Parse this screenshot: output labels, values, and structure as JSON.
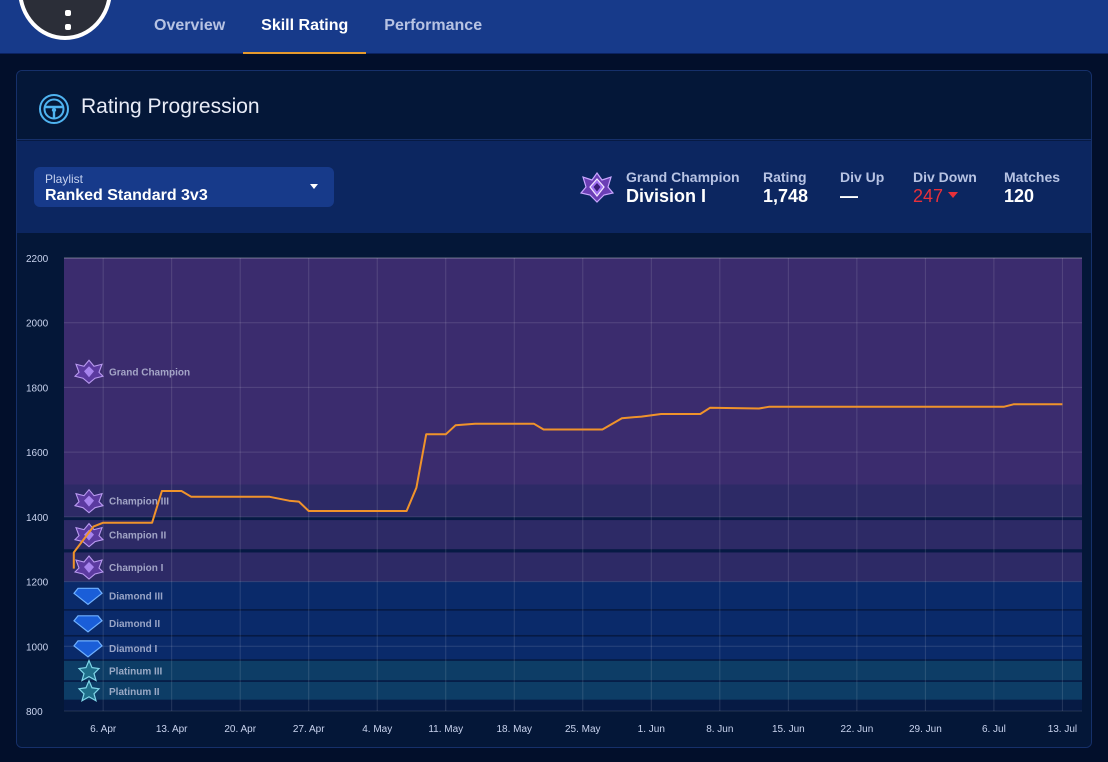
{
  "tabs": [
    {
      "label": "Overview"
    },
    {
      "label": "Skill Rating",
      "active": true
    },
    {
      "label": "Performance"
    }
  ],
  "card": {
    "title": "Rating Progression",
    "icon": "steering-wheel-icon"
  },
  "playlist": {
    "label": "Playlist",
    "value": "Ranked Standard 3v3"
  },
  "current_rank": {
    "tier": "Grand Champion",
    "division": "Division I",
    "icon": "grand-champion-rank-icon"
  },
  "stats": {
    "rating_label": "Rating",
    "rating_value": "1,748",
    "div_up_label": "Div Up",
    "div_up_value": "—",
    "div_down_label": "Div Down",
    "div_down_value": "247",
    "matches_label": "Matches",
    "matches_value": "120"
  },
  "colors": {
    "line": "#f0932b",
    "accent": "#e59a2e",
    "div_down": "#e8303a",
    "champion_band": "#3b2c6e",
    "diamond_band": "#0a2a6a",
    "platinum_band": "#0d3d66"
  },
  "chart_data": {
    "type": "line",
    "ylim": [
      800,
      2200
    ],
    "yticks": [
      800,
      1000,
      1200,
      1400,
      1600,
      1800,
      2000,
      2200
    ],
    "xticks": [
      "6. Apr",
      "13. Apr",
      "20. Apr",
      "27. Apr",
      "4. May",
      "11. May",
      "18. May",
      "25. May",
      "1. Jun",
      "8. Jun",
      "15. Jun",
      "22. Jun",
      "29. Jun",
      "6. Jul",
      "13. Jul"
    ],
    "xlim": [
      "2020-04-02",
      "2020-07-15"
    ],
    "grid": true,
    "bands": [
      {
        "name": "Grand Champion",
        "from": 1500,
        "to": 2200
      },
      {
        "name": "Champion III",
        "from": 1400,
        "to": 1500
      },
      {
        "name": "Champion II",
        "from": 1300,
        "to": 1390
      },
      {
        "name": "Champion I",
        "from": 1200,
        "to": 1290
      },
      {
        "name": "Diamond III",
        "from": 1115,
        "to": 1200
      },
      {
        "name": "Diamond II",
        "from": 1035,
        "to": 1110
      },
      {
        "name": "Diamond I",
        "from": 960,
        "to": 1030
      },
      {
        "name": "Platinum III",
        "from": 895,
        "to": 955
      },
      {
        "name": "Platinum II",
        "from": 835,
        "to": 890
      }
    ],
    "series": [
      {
        "points": [
          [
            "2020-04-03",
            1240
          ],
          [
            "2020-04-03",
            1290
          ],
          [
            "2020-04-04",
            1330
          ],
          [
            "2020-04-05",
            1370
          ],
          [
            "2020-04-06",
            1382
          ],
          [
            "2020-04-09",
            1382
          ],
          [
            "2020-04-11",
            1382
          ],
          [
            "2020-04-12",
            1480
          ],
          [
            "2020-04-14",
            1480
          ],
          [
            "2020-04-15",
            1462
          ],
          [
            "2020-04-20",
            1462
          ],
          [
            "2020-04-23",
            1462
          ],
          [
            "2020-04-25",
            1450
          ],
          [
            "2020-04-26",
            1447
          ],
          [
            "2020-04-27",
            1418
          ],
          [
            "2020-05-03",
            1418
          ],
          [
            "2020-05-07",
            1418
          ],
          [
            "2020-05-08",
            1490
          ],
          [
            "2020-05-09",
            1655
          ],
          [
            "2020-05-11",
            1655
          ],
          [
            "2020-05-12",
            1683
          ],
          [
            "2020-05-14",
            1688
          ],
          [
            "2020-05-20",
            1688
          ],
          [
            "2020-05-21",
            1670
          ],
          [
            "2020-05-27",
            1670
          ],
          [
            "2020-05-29",
            1705
          ],
          [
            "2020-05-31",
            1710
          ],
          [
            "2020-06-02",
            1718
          ],
          [
            "2020-06-06",
            1718
          ],
          [
            "2020-06-07",
            1737
          ],
          [
            "2020-06-12",
            1735
          ],
          [
            "2020-06-13",
            1740
          ],
          [
            "2020-07-07",
            1740
          ],
          [
            "2020-07-08",
            1748
          ],
          [
            "2020-07-13",
            1748
          ]
        ]
      }
    ]
  }
}
